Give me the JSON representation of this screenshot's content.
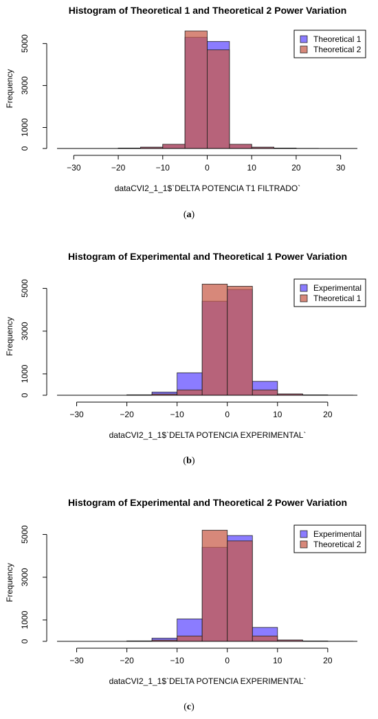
{
  "chart_data": [
    {
      "type": "bar",
      "title": "Histogram of Theoretical 1 and Theoretical 2 Power Variation",
      "xlabel": "dataCVI2_1_1$`DELTA POTENCIA T1 FILTRADO`",
      "ylabel": "Frequency",
      "caption": "a",
      "xlim": [
        -35,
        35
      ],
      "ylim": [
        0,
        5700
      ],
      "xticks": [
        -30,
        -20,
        -10,
        0,
        10,
        20,
        30
      ],
      "yticks": [
        0,
        1000,
        3000,
        5000
      ],
      "legend": "top-right",
      "bin_width": 5,
      "series": [
        {
          "name": "Theoretical 1",
          "color": "#7b6cf6",
          "bin_starts": [
            -20,
            -15,
            -10,
            -5,
            0,
            5,
            10,
            15,
            20
          ],
          "values": [
            20,
            60,
            200,
            5300,
            5100,
            200,
            60,
            20,
            5
          ]
        },
        {
          "name": "Theoretical 2",
          "color": "#d98a7c",
          "bin_starts": [
            -20,
            -15,
            -10,
            -5,
            0,
            5,
            10,
            15,
            20
          ],
          "values": [
            20,
            60,
            200,
            5600,
            4700,
            200,
            60,
            20,
            5
          ]
        }
      ]
    },
    {
      "type": "bar",
      "title": "Histogram of Experimental and Theoretical 1 Power Variation",
      "xlabel": "dataCVI2_1_1$`DELTA POTENCIA EXPERIMENTAL`",
      "ylabel": "Frequency",
      "caption": "b",
      "xlim": [
        -35,
        27
      ],
      "ylim": [
        0,
        5500
      ],
      "xticks": [
        -30,
        -20,
        -10,
        0,
        10,
        20
      ],
      "yticks": [
        0,
        1000,
        3000,
        5000
      ],
      "legend": "top-right",
      "bin_width": 5,
      "series": [
        {
          "name": "Experimental",
          "color": "#7b6cf6",
          "bin_starts": [
            -20,
            -15,
            -10,
            -5,
            0,
            5,
            10,
            15,
            20
          ],
          "values": [
            20,
            150,
            1050,
            4400,
            4950,
            650,
            60,
            15,
            5
          ]
        },
        {
          "name": "Theoretical 1",
          "color": "#d98a7c",
          "bin_starts": [
            -20,
            -15,
            -10,
            -5,
            0,
            5,
            10,
            15,
            20
          ],
          "values": [
            20,
            60,
            250,
            5200,
            5100,
            250,
            60,
            15,
            5
          ]
        }
      ]
    },
    {
      "type": "bar",
      "title": "Histogram of Experimental and Theoretical 2 Power Variation",
      "xlabel": "dataCVI2_1_1$`DELTA POTENCIA EXPERIMENTAL`",
      "ylabel": "Frequency",
      "caption": "c",
      "xlim": [
        -35,
        27
      ],
      "ylim": [
        0,
        5500
      ],
      "xticks": [
        -30,
        -20,
        -10,
        0,
        10,
        20
      ],
      "yticks": [
        0,
        1000,
        3000,
        5000
      ],
      "legend": "top-right",
      "bin_width": 5,
      "series": [
        {
          "name": "Experimental",
          "color": "#7b6cf6",
          "bin_starts": [
            -20,
            -15,
            -10,
            -5,
            0,
            5,
            10,
            15,
            20
          ],
          "values": [
            20,
            150,
            1050,
            4400,
            4950,
            650,
            60,
            15,
            5
          ]
        },
        {
          "name": "Theoretical 2",
          "color": "#d98a7c",
          "bin_starts": [
            -20,
            -15,
            -10,
            -5,
            0,
            5,
            10,
            15,
            20
          ],
          "values": [
            20,
            60,
            250,
            5200,
            4700,
            250,
            60,
            15,
            5
          ]
        }
      ]
    }
  ]
}
